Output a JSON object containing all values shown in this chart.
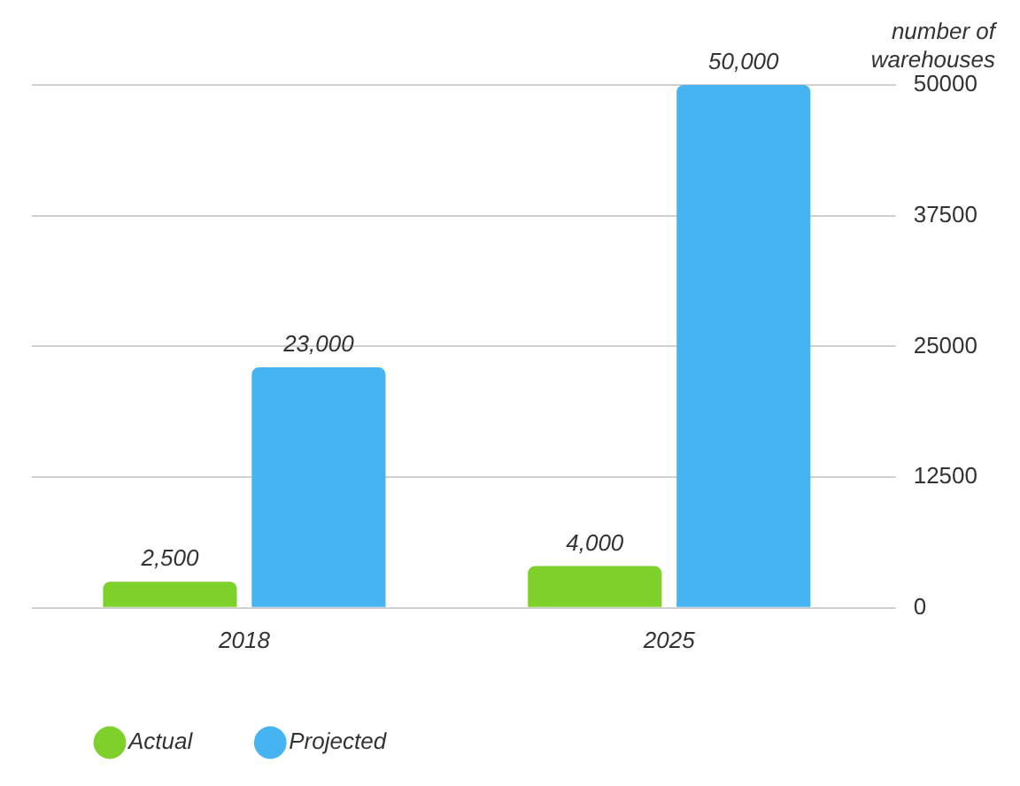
{
  "chart_data": {
    "type": "bar",
    "ylabel": "number of warehouses",
    "categories": [
      "2018",
      "2025"
    ],
    "series": [
      {
        "name": "Actual",
        "color": "#7ed12a",
        "values": [
          2500,
          4000
        ],
        "value_labels": [
          "2,500",
          "4,000"
        ]
      },
      {
        "name": "Projected",
        "color": "#45b4f0",
        "values": [
          23000,
          50000
        ],
        "value_labels": [
          "23,000",
          "50,000"
        ]
      }
    ],
    "ylim": [
      0,
      50000
    ],
    "yticks": [
      0,
      12500,
      25000,
      37500,
      50000
    ],
    "grid": "y",
    "legend": "bottom left"
  }
}
